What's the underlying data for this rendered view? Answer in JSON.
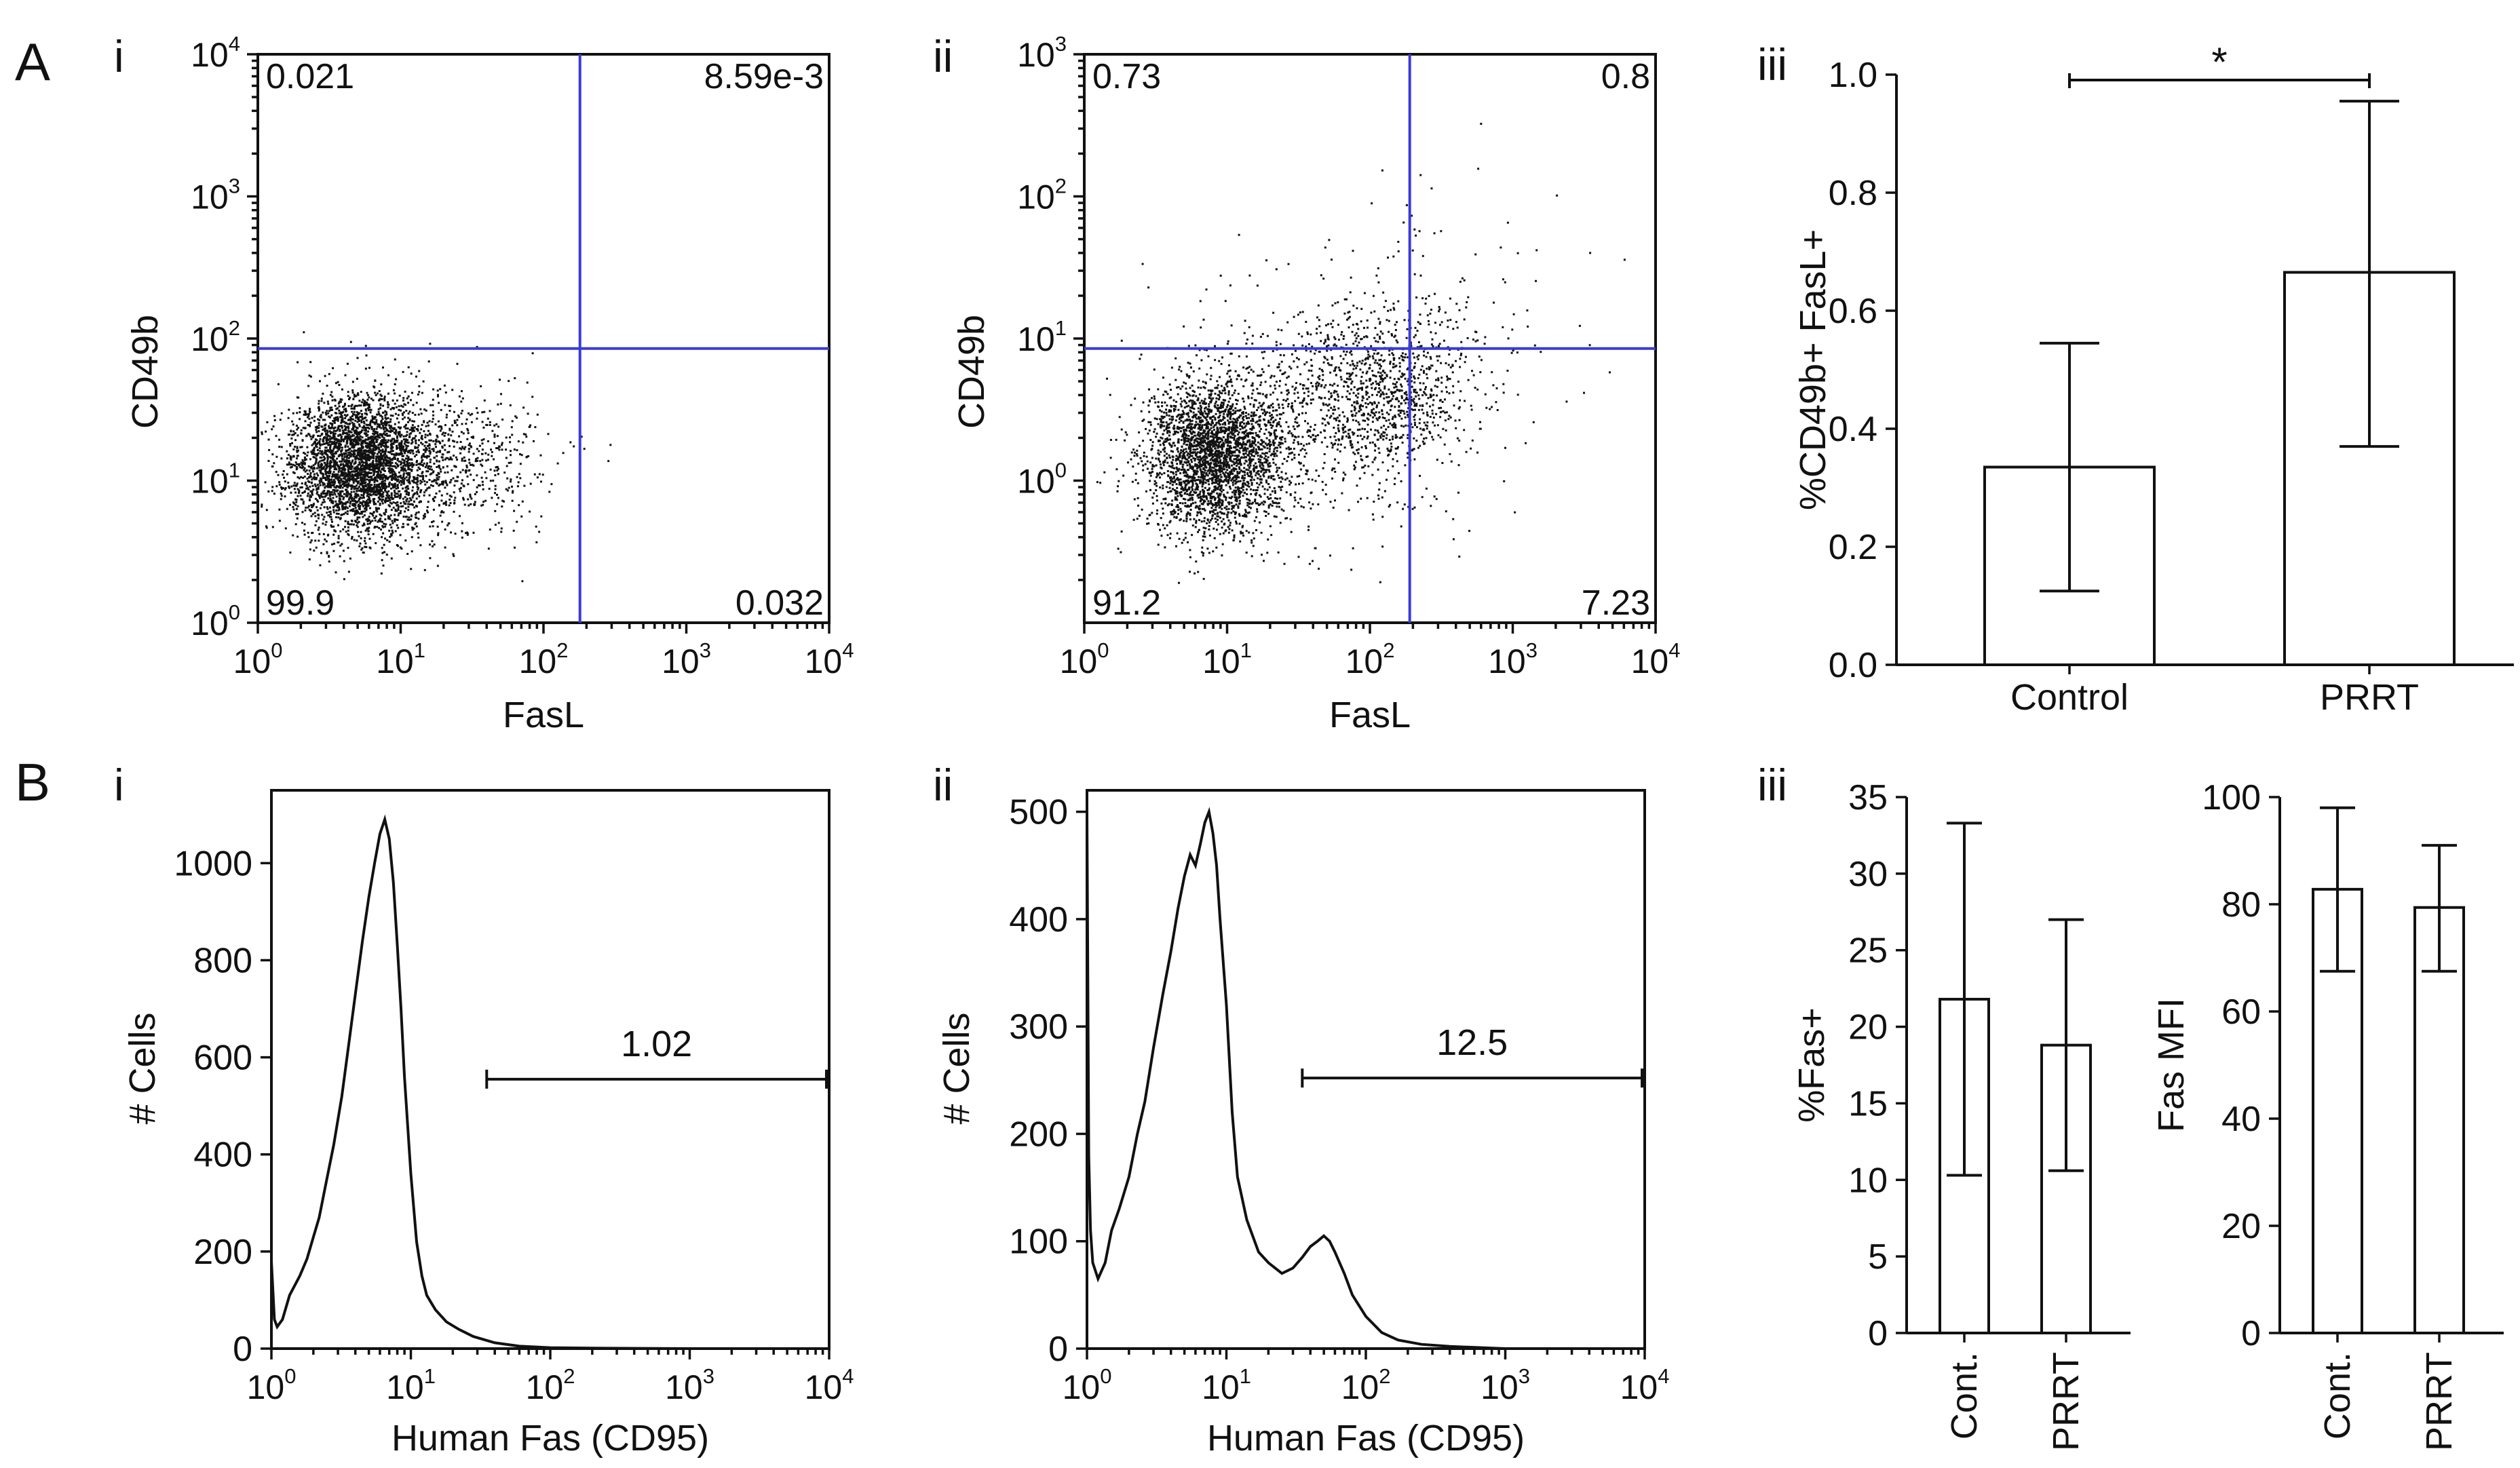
{
  "colors": {
    "axis": "#111111",
    "dots": "#111111",
    "gate": "#3a3adb",
    "bar_fill": "#ffffff"
  },
  "panel_labels": {
    "A": "A",
    "B": "B",
    "a_i": "i",
    "a_ii": "ii",
    "a_iii": "iii",
    "b_i": "i",
    "b_ii": "ii",
    "b_iii": "iii"
  },
  "chart_data": [
    {
      "id": "A_i",
      "type": "scatter",
      "xlabel": "FasL",
      "ylabel": "CD49b",
      "x_scale": "log",
      "xlim": [
        1,
        10000
      ],
      "x_tick_labels": [
        "10",
        "10",
        "10",
        "10",
        "10"
      ],
      "x_tick_exponents": [
        "0",
        "1",
        "2",
        "3",
        "4"
      ],
      "y_scale": "log",
      "ylim": [
        1,
        10000
      ],
      "y_tick_labels": [
        "10",
        "10",
        "10",
        "10",
        "10"
      ],
      "y_tick_exponents": [
        "0",
        "1",
        "2",
        "3",
        "4"
      ],
      "quadrant_gate": {
        "x": 180,
        "y": 85
      },
      "quadrant_values": {
        "top_left": "0.021",
        "top_right": "8.59e-3",
        "bottom_left": "99.9",
        "bottom_right": "0.032"
      },
      "populations": [
        {
          "cx": 5,
          "cy": 13,
          "sx": 0.24,
          "sy": 0.25,
          "n": 3200
        },
        {
          "cx": 18,
          "cy": 14,
          "sx": 0.38,
          "sy": 0.25,
          "n": 800
        }
      ]
    },
    {
      "id": "A_ii",
      "type": "scatter",
      "xlabel": "FasL",
      "ylabel": "CD49b",
      "x_scale": "log",
      "xlim": [
        1,
        10000
      ],
      "x_tick_labels": [
        "10",
        "10",
        "10",
        "10",
        "10"
      ],
      "x_tick_exponents": [
        "0",
        "1",
        "2",
        "3",
        "4"
      ],
      "y_scale": "log",
      "ylim": [
        0.1,
        1000
      ],
      "y_tick_labels": [
        "10",
        "10",
        "10",
        "10"
      ],
      "y_tick_exponents": [
        "0",
        "1",
        "2",
        "3"
      ],
      "quadrant_gate": {
        "x": 190,
        "y": 8.5
      },
      "quadrant_values": {
        "top_left": "0.73",
        "top_right": "0.8",
        "bottom_left": "91.2",
        "bottom_right": "7.23"
      },
      "populations": [
        {
          "cx": 8,
          "cy": 1.5,
          "sx": 0.25,
          "sy": 0.27,
          "n": 2800
        },
        {
          "cx": 110,
          "cy": 4.0,
          "sx": 0.34,
          "sy": 0.27,
          "n": 1000
        },
        {
          "cx": 40,
          "cy": 3.0,
          "sx": 0.55,
          "sy": 0.45,
          "n": 450
        },
        {
          "cx": 300,
          "cy": 15,
          "sx": 0.55,
          "sy": 0.45,
          "n": 130
        }
      ]
    },
    {
      "id": "A_iii",
      "type": "bar",
      "categories": [
        "Control",
        "PRRT"
      ],
      "values": [
        0.335,
        0.665
      ],
      "error_low": [
        0.125,
        0.37
      ],
      "error_high": [
        0.545,
        0.955
      ],
      "ylabel": "%CD49b+ FasL+",
      "ylim": [
        0,
        1.0
      ],
      "y_ticks": [
        "0.0",
        "0.2",
        "0.4",
        "0.6",
        "0.8",
        "1.0"
      ],
      "significance": "*"
    },
    {
      "id": "B_i",
      "type": "line",
      "xlabel": "Human Fas (CD95)",
      "ylabel": "# Cells",
      "x_scale": "log",
      "xlim": [
        1,
        10000
      ],
      "x_tick_labels": [
        "10",
        "10",
        "10",
        "10",
        "10"
      ],
      "x_tick_exponents": [
        "0",
        "1",
        "2",
        "3",
        "4"
      ],
      "ylim": [
        0,
        1150
      ],
      "y_ticks": [
        "0",
        "200",
        "400",
        "600",
        "800",
        "1000"
      ],
      "gate": {
        "x_start": 35,
        "x_end": 10000,
        "y": 555,
        "label": "1.02"
      },
      "x": [
        1,
        1.05,
        1.1,
        1.2,
        1.35,
        1.6,
        1.8,
        2.0,
        2.2,
        2.5,
        2.8,
        3.2,
        3.6,
        4.0,
        4.5,
        5.0,
        5.5,
        6.0,
        6.5,
        7.0,
        7.5,
        8.0,
        8.5,
        9.0,
        10,
        11,
        12,
        13,
        15,
        18,
        22,
        28,
        40,
        60,
        100,
        200,
        1000,
        10000
      ],
      "y": [
        180,
        60,
        45,
        60,
        110,
        150,
        185,
        230,
        270,
        350,
        420,
        520,
        630,
        730,
        840,
        930,
        1000,
        1060,
        1090,
        1050,
        960,
        830,
        700,
        560,
        360,
        220,
        150,
        110,
        80,
        55,
        40,
        25,
        12,
        5,
        2,
        1,
        0,
        0
      ]
    },
    {
      "id": "B_ii",
      "type": "line",
      "xlabel": "Human Fas (CD95)",
      "ylabel": "# Cells",
      "x_scale": "log",
      "xlim": [
        1,
        10000
      ],
      "x_tick_labels": [
        "10",
        "10",
        "10",
        "10",
        "10"
      ],
      "x_tick_exponents": [
        "0",
        "1",
        "2",
        "3",
        "4"
      ],
      "ylim": [
        0,
        520
      ],
      "y_ticks": [
        "0",
        "100",
        "200",
        "300",
        "400",
        "500"
      ],
      "gate": {
        "x_start": 35,
        "x_end": 10000,
        "y": 252,
        "label": "12.5"
      },
      "x": [
        1,
        1.03,
        1.06,
        1.1,
        1.2,
        1.35,
        1.5,
        1.7,
        2.0,
        2.3,
        2.6,
        3.0,
        3.5,
        4.0,
        4.5,
        5.0,
        5.5,
        6.0,
        6.5,
        7.0,
        7.5,
        8.0,
        8.5,
        9.0,
        10,
        11,
        12,
        14,
        17,
        20,
        25,
        30,
        35,
        40,
        45,
        50,
        55,
        60,
        70,
        80,
        100,
        130,
        170,
        250,
        400,
        1000,
        10000
      ],
      "y": [
        500,
        180,
        110,
        80,
        65,
        80,
        110,
        130,
        160,
        200,
        230,
        280,
        330,
        370,
        410,
        440,
        460,
        450,
        470,
        490,
        500,
        480,
        450,
        400,
        320,
        220,
        160,
        120,
        90,
        80,
        70,
        75,
        85,
        95,
        100,
        105,
        100,
        90,
        70,
        50,
        30,
        15,
        8,
        4,
        2,
        0,
        0
      ]
    },
    {
      "id": "B_iii_fas",
      "type": "bar",
      "categories": [
        "Cont.",
        "PRRT"
      ],
      "values": [
        21.8,
        18.8
      ],
      "error_low": [
        10.3,
        10.6
      ],
      "error_high": [
        33.3,
        27.0
      ],
      "ylabel": "%Fas+",
      "ylim": [
        0,
        35
      ],
      "y_ticks": [
        "0",
        "5",
        "10",
        "15",
        "20",
        "25",
        "30",
        "35"
      ]
    },
    {
      "id": "B_iii_mfi",
      "type": "bar",
      "categories": [
        "Cont.",
        "PRRT"
      ],
      "values": [
        82.8,
        79.4
      ],
      "error_low": [
        67.5,
        67.5
      ],
      "error_high": [
        98.0,
        91.0
      ],
      "ylabel": "Fas MFI",
      "ylim": [
        0,
        100
      ],
      "y_ticks": [
        "0",
        "20",
        "40",
        "60",
        "80",
        "100"
      ]
    }
  ]
}
